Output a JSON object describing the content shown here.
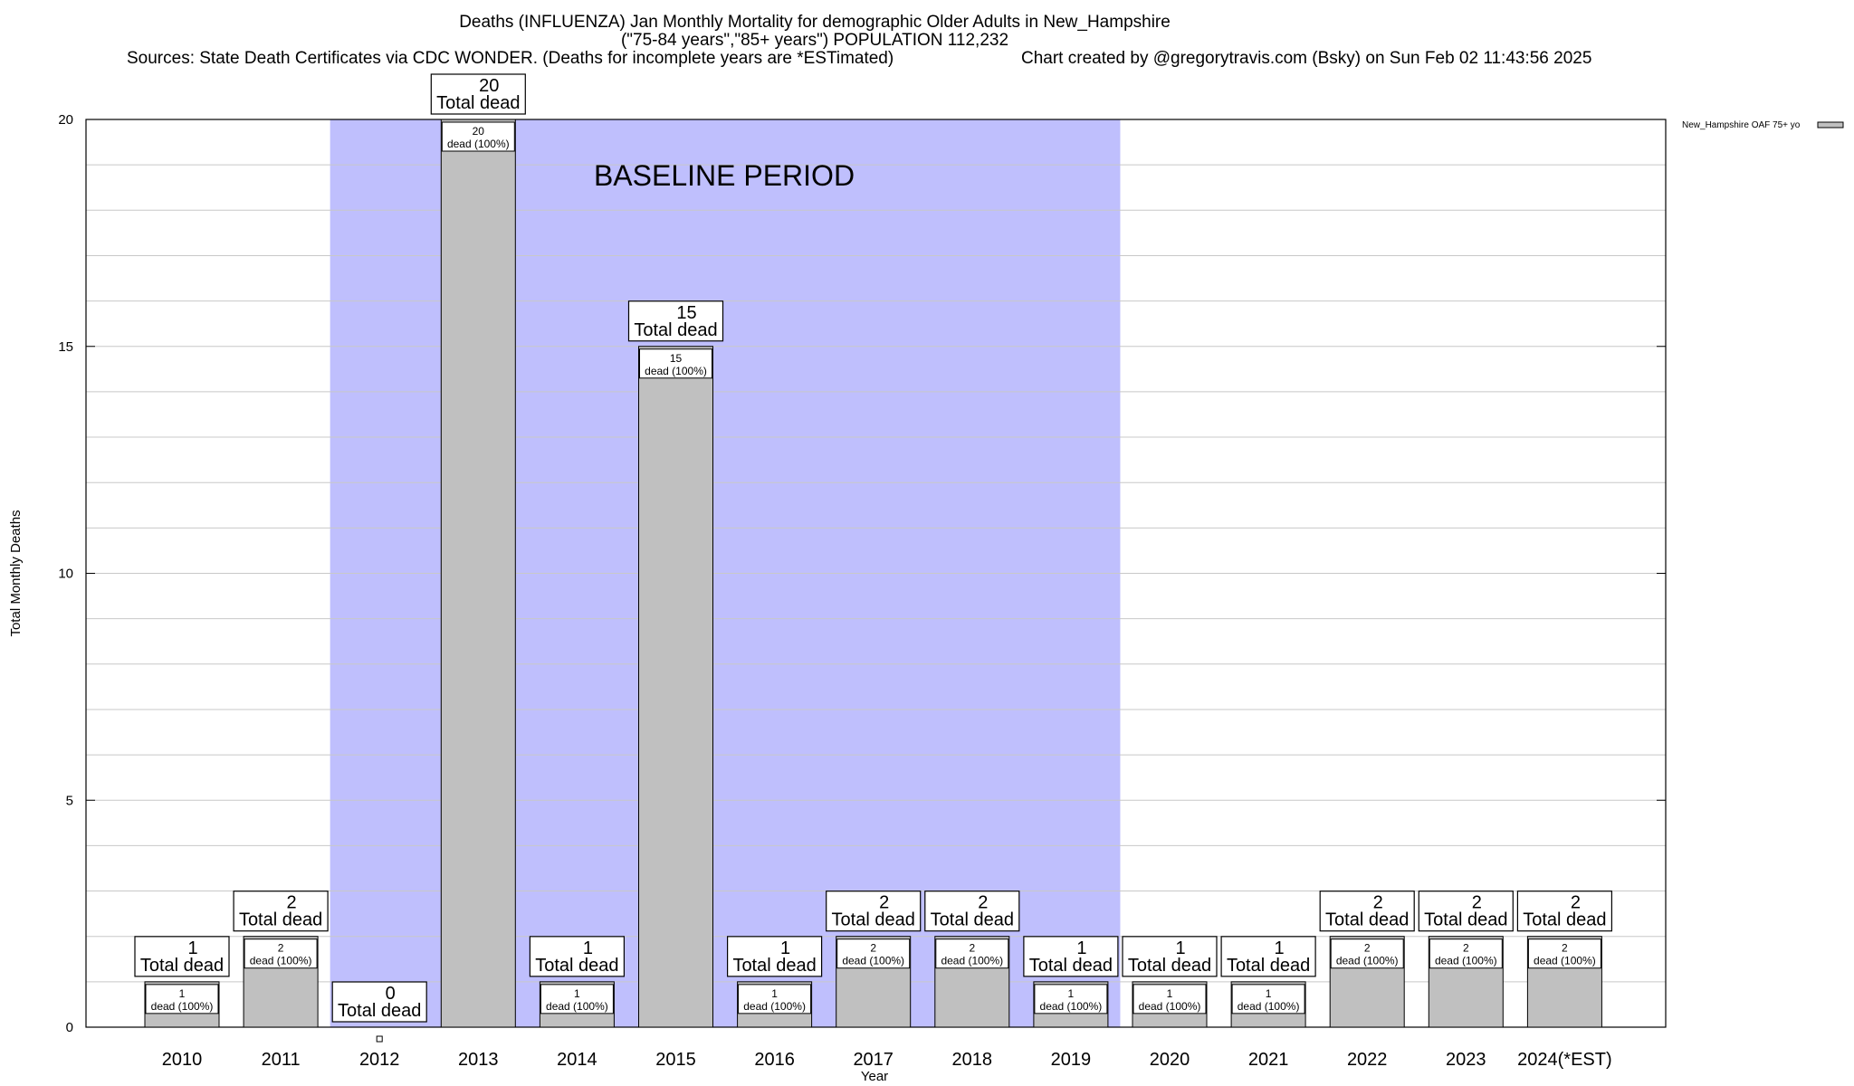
{
  "header": {
    "title_line1": "Deaths (INFLUENZA) Jan Monthly Mortality for demographic Older Adults in New_Hampshire",
    "title_line2": "(\"75-84 years\",\"85+ years\") POPULATION 112,232",
    "sources": "Sources: State Death Certificates via CDC WONDER. (Deaths for incomplete years are *ESTimated)",
    "credit": "Chart created by @gregorytravis.com (Bsky) on Sun Feb 02 11:43:56 2025"
  },
  "colors": {
    "baseline_band": "#bfbffd",
    "bar_fill": "#c0c0c0",
    "bar_stroke": "#000000",
    "grid": "#c8c8c8"
  },
  "chart_data": {
    "type": "bar",
    "title": "Deaths (INFLUENZA) Jan Monthly Mortality for demographic Older Adults in New_Hampshire",
    "xlabel": "Year",
    "ylabel": "Total Monthly Deaths",
    "ylim": [
      0,
      20
    ],
    "yticks": [
      0,
      5,
      10,
      15,
      20
    ],
    "grid": true,
    "legend_position": "top-right",
    "categories": [
      "2010",
      "2011",
      "2012",
      "2013",
      "2014",
      "2015",
      "2016",
      "2017",
      "2018",
      "2019",
      "2020",
      "2021",
      "2022",
      "2023",
      "2024(*EST)"
    ],
    "series": [
      {
        "name": "New_Hampshire OAF 75+ yo",
        "values": [
          1,
          2,
          0,
          20,
          1,
          15,
          1,
          2,
          2,
          1,
          1,
          1,
          2,
          2,
          2
        ]
      }
    ],
    "total_label_suffix": "Total dead",
    "inner_label_suffix": "dead (100%)",
    "annotation": "BASELINE PERIOD",
    "baseline_period": [
      "2012",
      "2019"
    ]
  }
}
